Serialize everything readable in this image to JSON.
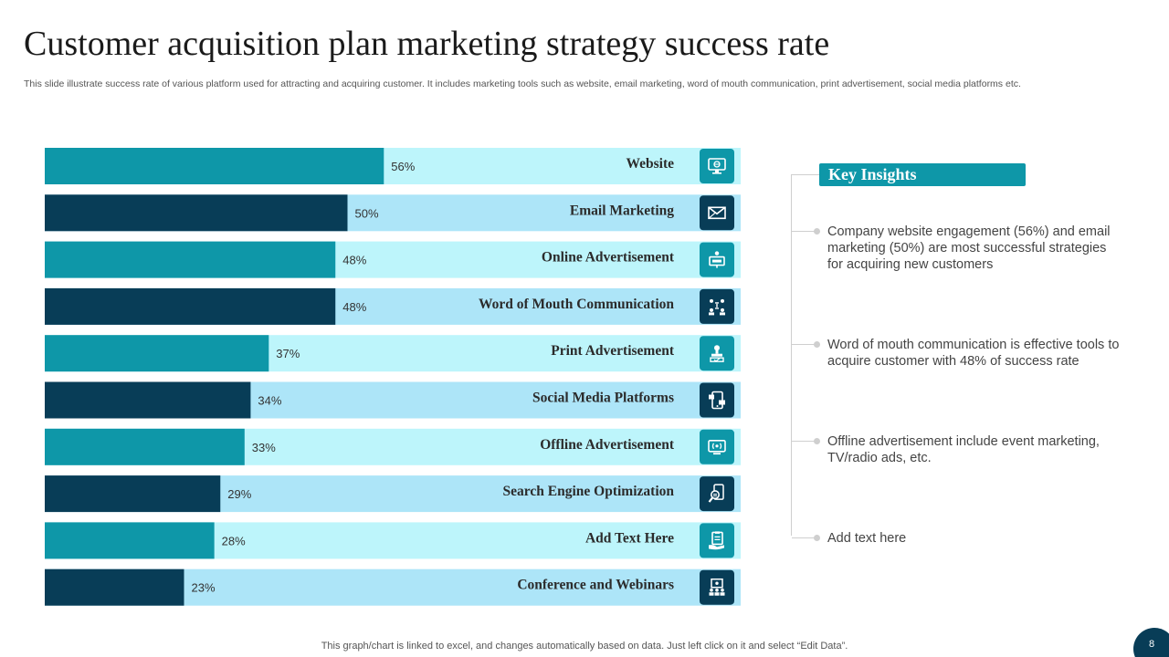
{
  "title": "Customer acquisition plan marketing strategy success rate",
  "subtitle": "This slide illustrate success rate of various platform used for attracting and acquiring customer. It includes marketing tools such as website, email marketing, word of mouth communication, print advertisement, social media platforms etc.",
  "colors": {
    "teal": "#0e97a8",
    "navy": "#083d57",
    "light_cyan": "#bdf5fb",
    "light_blue": "#ade5f8"
  },
  "chart_data": {
    "type": "bar",
    "orientation": "horizontal",
    "title": "",
    "xlabel": "",
    "ylabel": "",
    "xlim": [
      0,
      100
    ],
    "categories": [
      "Website",
      "Email Marketing",
      "Online Advertisement",
      "Word of Mouth Communication",
      "Print Advertisement",
      "Social Media Platforms",
      "Offline Advertisement",
      "Search Engine Optimization",
      "Add Text Here",
      "Conference and Webinars"
    ],
    "values": [
      56,
      50,
      48,
      48,
      37,
      34,
      33,
      29,
      28,
      23
    ],
    "value_labels": [
      "56%",
      "50%",
      "48%",
      "48%",
      "37%",
      "34%",
      "33%",
      "29%",
      "28%",
      "23%"
    ],
    "icons": [
      "website-monitor-icon",
      "email-envelope-icon",
      "online-ad-billboard-icon",
      "word-of-mouth-people-icon",
      "print-stamp-icon",
      "social-media-phone-icon",
      "offline-broadcast-icon",
      "seo-magnifier-icon",
      "clipboard-hand-icon",
      "conference-presenter-icon"
    ]
  },
  "insights": {
    "header": "Key Insights",
    "items": [
      "Company website engagement (56%) and email marketing (50%) are most successful strategies for acquiring new customers",
      "Word of mouth communication is effective tools to acquire customer with 48% of success rate",
      "Offline advertisement include event marketing, TV/radio ads, etc.",
      "Add text here"
    ]
  },
  "footer_note": "This graph/chart is linked to excel,  and changes automatically based on data. Just left click on it and select “Edit Data”.",
  "page_number": "8"
}
